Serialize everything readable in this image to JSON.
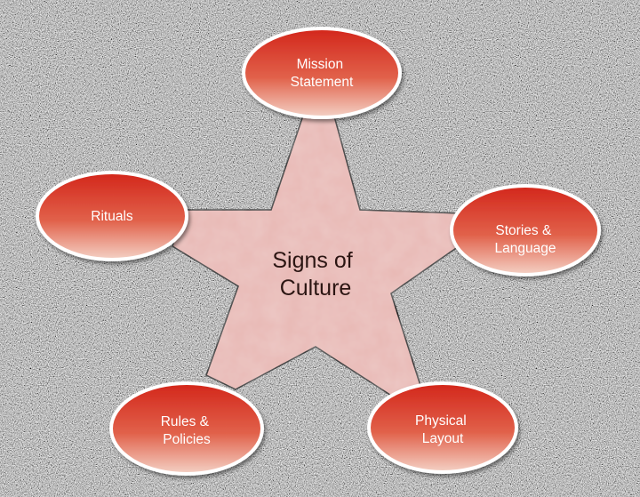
{
  "diagram": {
    "center": {
      "lines": [
        "Signs of",
        "Culture"
      ]
    },
    "nodes": [
      {
        "id": "mission",
        "lines": [
          "Mission",
          "Statement"
        ]
      },
      {
        "id": "stories",
        "lines": [
          "Stories &",
          "Language"
        ]
      },
      {
        "id": "layout",
        "lines": [
          "Physical",
          "Layout"
        ]
      },
      {
        "id": "rules",
        "lines": [
          "Rules &",
          "Policies"
        ]
      },
      {
        "id": "rituals",
        "lines": [
          "Rituals"
        ]
      }
    ]
  },
  "colors": {
    "background": "#8c8c8c",
    "star_fill": "#e8b8b4",
    "star_stroke": "#111111",
    "node_top": "#d3261b",
    "node_bottom": "#f4d2c6",
    "node_border": "#ffffff",
    "node_text": "#ffffff"
  }
}
